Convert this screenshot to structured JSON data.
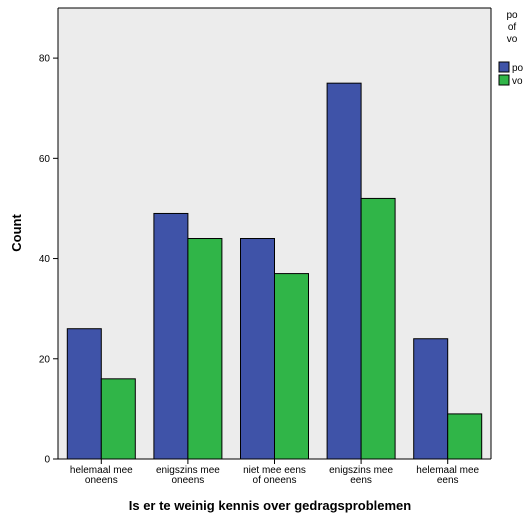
{
  "chart_data": {
    "type": "bar",
    "categories": [
      [
        "helemaal mee",
        "oneens"
      ],
      [
        "enigszins mee",
        "oneens"
      ],
      [
        "niet mee eens",
        "of oneens"
      ],
      [
        "enigszins mee",
        "eens"
      ],
      [
        "helemaal mee",
        "eens"
      ]
    ],
    "series": [
      {
        "name": "po",
        "color": "#3f53a8",
        "values": [
          26,
          49,
          44,
          75,
          24
        ]
      },
      {
        "name": "vo",
        "color": "#30b548",
        "values": [
          16,
          44,
          37,
          52,
          9
        ]
      }
    ],
    "xlabel": "Is er te weinig kennis over gedragsproblemen",
    "ylabel": "Count",
    "ylim": [
      0,
      90
    ],
    "yticks": [
      0,
      20,
      40,
      60,
      80
    ],
    "legend": {
      "title": [
        "po",
        "of",
        "vo"
      ],
      "placement": "right-top"
    },
    "plot_background": "#ececec",
    "grid": false
  }
}
